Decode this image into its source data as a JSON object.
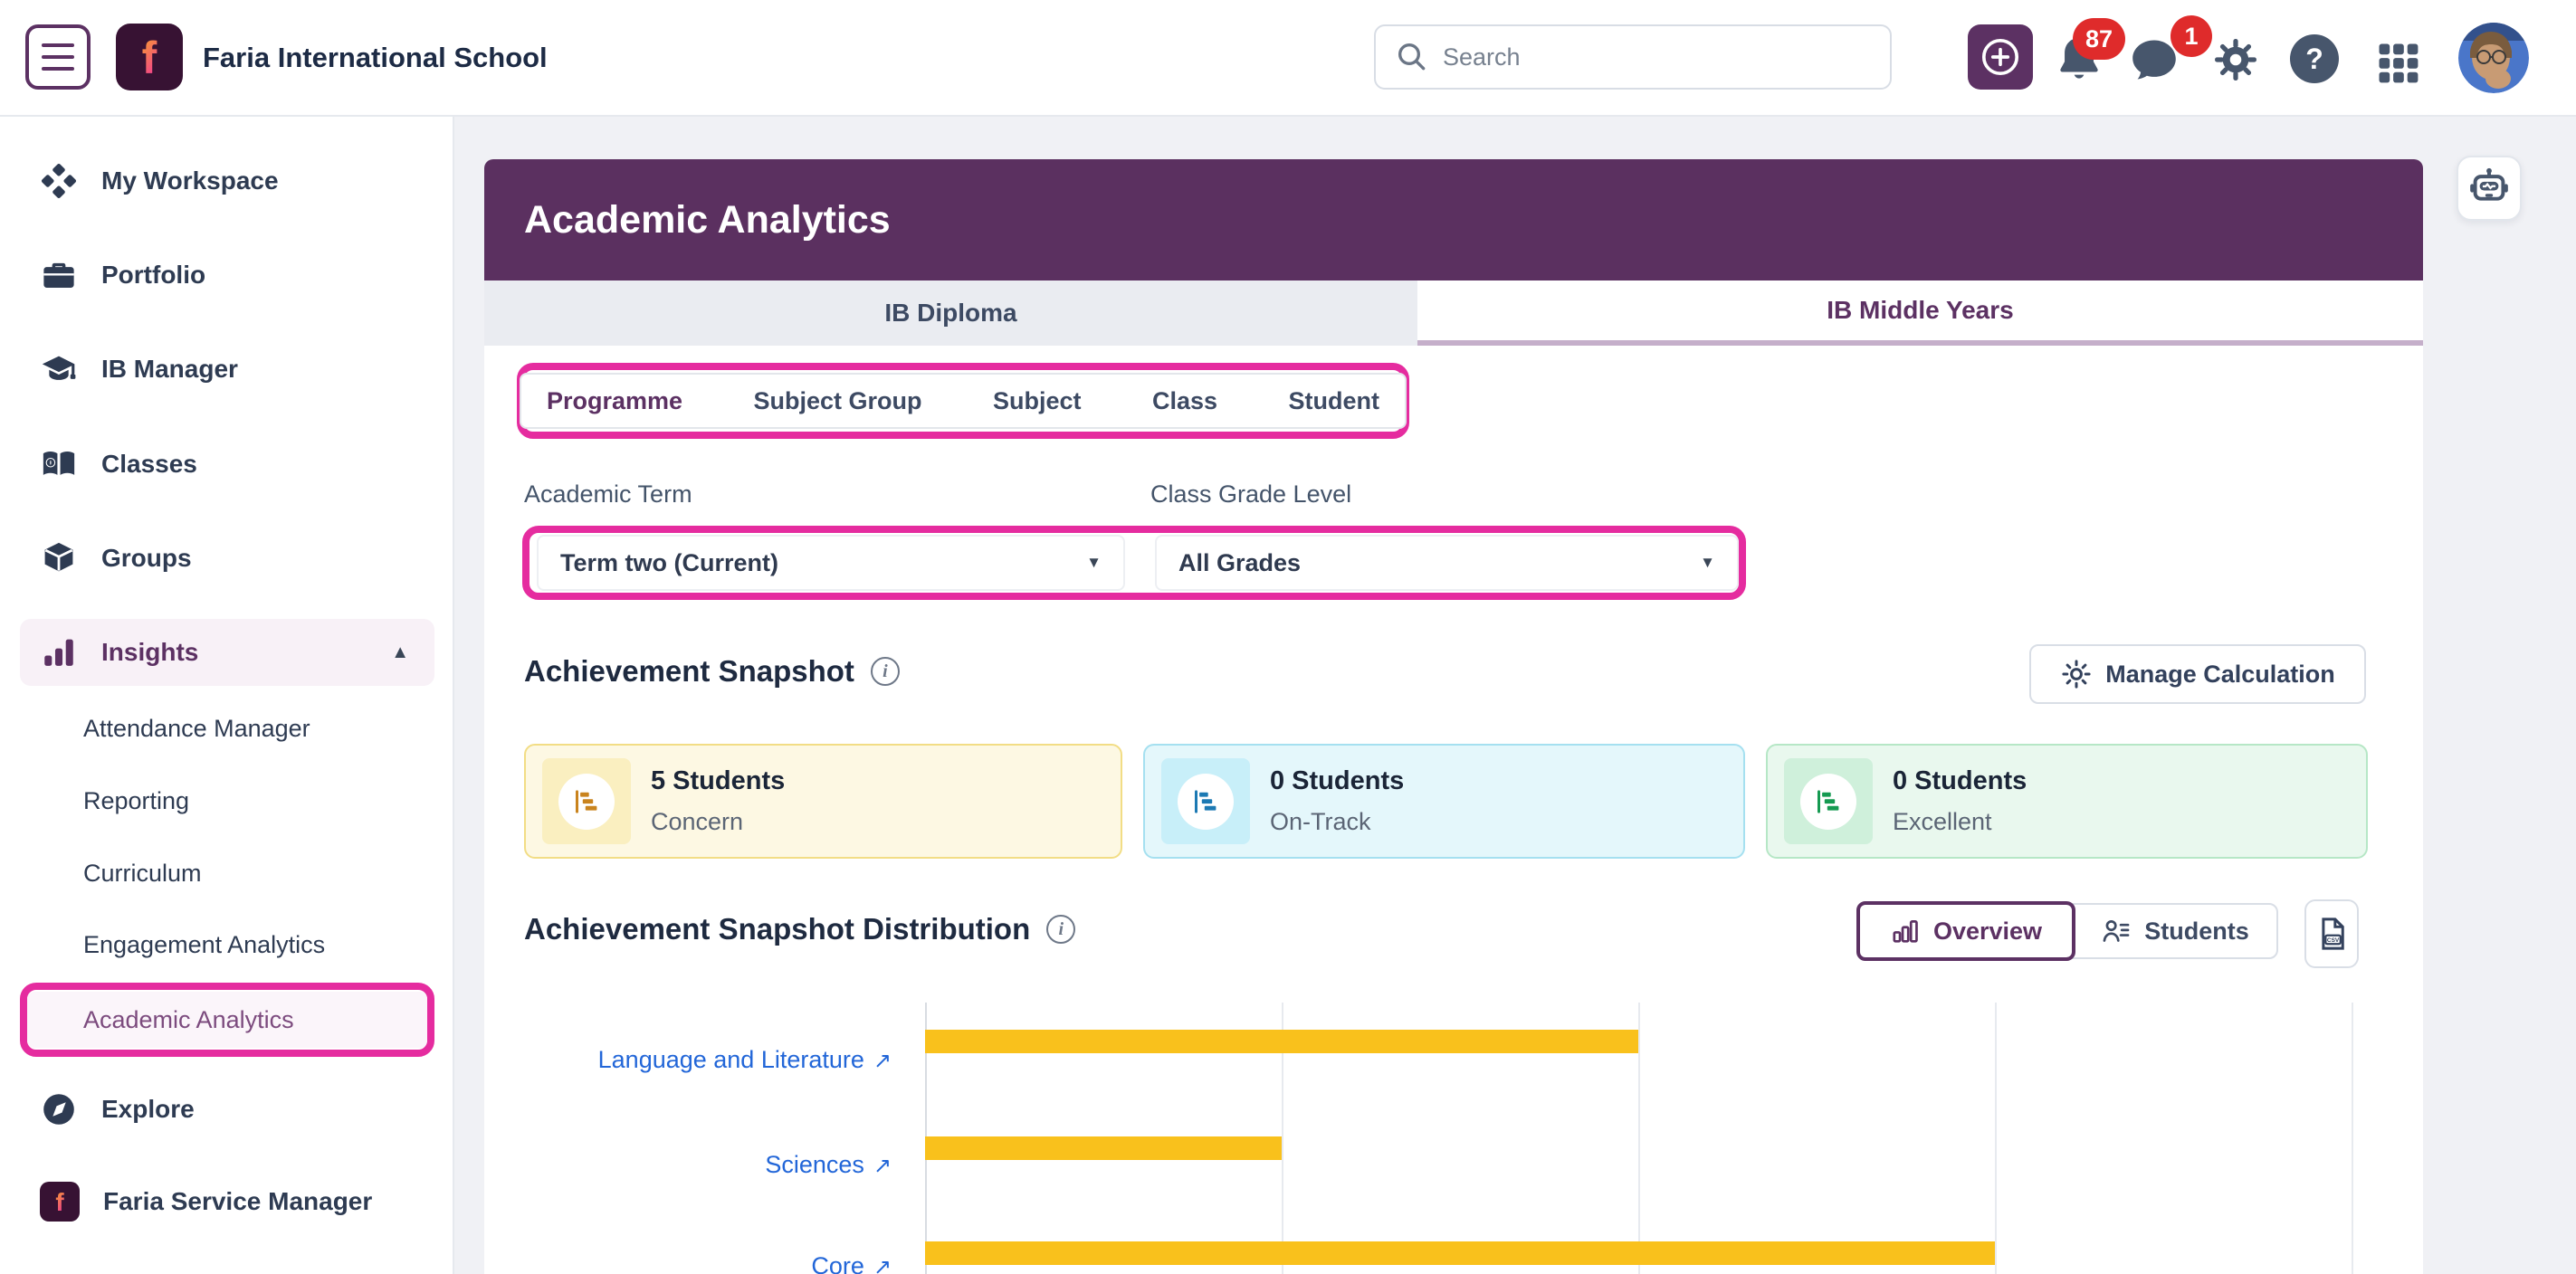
{
  "colors": {
    "brand_purple": "#5C3163",
    "header_purple": "#5B3060",
    "annotation_pink": "#E52C9F",
    "bar_amber": "#F9C11C",
    "badge_red": "#DF2B2B",
    "link_blue": "#2266D8"
  },
  "topbar": {
    "school_name": "Faria International School",
    "search_placeholder": "Search",
    "notification_count": "87",
    "message_count": "1"
  },
  "sidebar": {
    "items": [
      {
        "label": "My Workspace"
      },
      {
        "label": "Portfolio"
      },
      {
        "label": "IB Manager"
      },
      {
        "label": "Classes"
      },
      {
        "label": "Groups"
      },
      {
        "label": "Insights"
      }
    ],
    "insights_children": [
      {
        "label": "Attendance Manager"
      },
      {
        "label": "Reporting"
      },
      {
        "label": "Curriculum"
      },
      {
        "label": "Engagement Analytics"
      },
      {
        "label": "Academic Analytics"
      }
    ],
    "explore_label": "Explore",
    "service_manager_label": "Faria Service Manager"
  },
  "page": {
    "title": "Academic Analytics",
    "programme_tabs": [
      {
        "label": "IB Diploma",
        "active": false
      },
      {
        "label": "IB Middle Years",
        "active": true
      }
    ],
    "level_tabs": [
      {
        "label": "Programme",
        "active": true
      },
      {
        "label": "Subject Group",
        "active": false
      },
      {
        "label": "Subject",
        "active": false
      },
      {
        "label": "Class",
        "active": false
      },
      {
        "label": "Student",
        "active": false
      }
    ]
  },
  "filters": {
    "term_label": "Academic Term",
    "term_value": "Term two (Current)",
    "grade_label": "Class Grade Level",
    "grade_value": "All Grades"
  },
  "snapshot": {
    "heading": "Achievement Snapshot",
    "manage_button_label": "Manage Calculation",
    "cards": [
      {
        "count": "5 Students",
        "label": "Concern"
      },
      {
        "count": "0 Students",
        "label": "On-Track"
      },
      {
        "count": "0 Students",
        "label": "Excellent"
      }
    ]
  },
  "distribution": {
    "heading": "Achievement Snapshot Distribution",
    "overview_label": "Overview",
    "students_label": "Students",
    "csv_label": "CSV"
  },
  "glyphs": {
    "logo_letter": "f",
    "help": "?",
    "info": "i",
    "caret_down": "▼",
    "chevron_up": "▲",
    "external_link": "↗"
  },
  "chart_data": {
    "type": "bar",
    "orientation": "horizontal",
    "title": "Achievement Snapshot Distribution",
    "categories": [
      "Language and Literature",
      "Sciences",
      "Core"
    ],
    "values": [
      2,
      1,
      3
    ],
    "series_name": "Concern",
    "xlim": [
      0,
      4
    ],
    "gridlines": true,
    "bar_color": "#F9C11C"
  }
}
